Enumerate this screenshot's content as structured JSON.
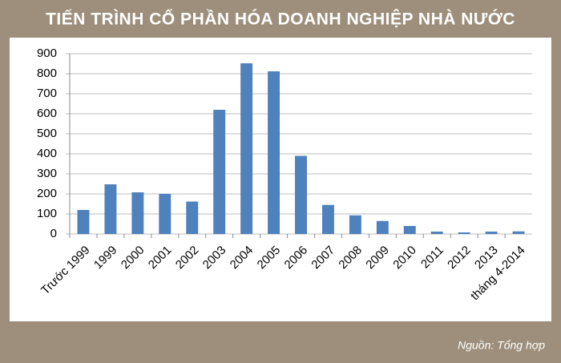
{
  "chart_data": {
    "type": "bar",
    "title": "TIẾN TRÌNH CỔ PHẦN HÓA DOANH NGHIỆP NHÀ NƯỚC",
    "categories": [
      "Trước 1999",
      "1999",
      "2000",
      "2001",
      "2002",
      "2003",
      "2004",
      "2005",
      "2006",
      "2007",
      "2008",
      "2009",
      "2010",
      "2011",
      "2012",
      "2013",
      "tháng 4-2014"
    ],
    "values": [
      120,
      248,
      208,
      200,
      162,
      620,
      852,
      812,
      390,
      145,
      93,
      65,
      40,
      12,
      8,
      12,
      13
    ],
    "color": "#4f81bd",
    "ylim": [
      0,
      900
    ],
    "yticks": [
      0,
      100,
      200,
      300,
      400,
      500,
      600,
      700,
      800,
      900
    ],
    "grid": true,
    "source": "Nguồn: Tổng hợp"
  }
}
